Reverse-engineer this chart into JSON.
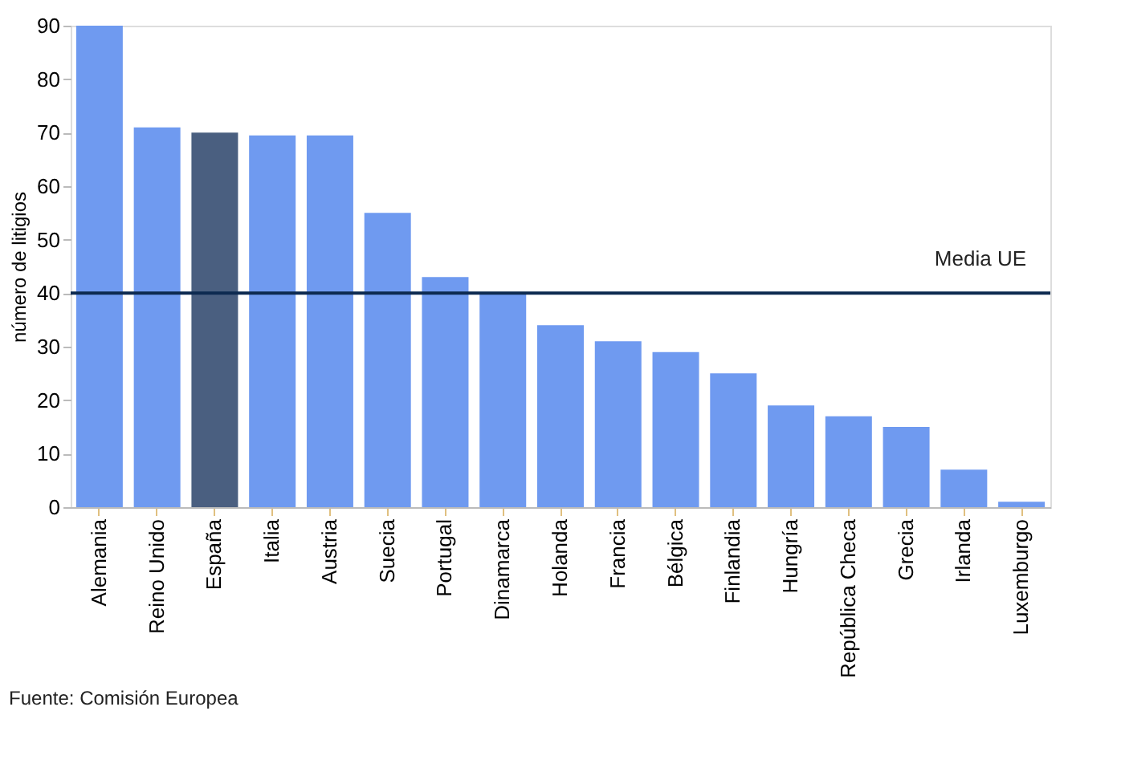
{
  "chart_data": {
    "type": "bar",
    "ylabel": "número de litigios",
    "categories": [
      "Alemania",
      "Reino Unido",
      "España",
      "Italia",
      "Austria",
      "Suecia",
      "Portugal",
      "Dinamarca",
      "Holanda",
      "Francia",
      "Bélgica",
      "Finlandia",
      "Hungría",
      "República Checa",
      "Grecia",
      "Irlanda",
      "Luxemburgo"
    ],
    "values": [
      90,
      71,
      70,
      69.5,
      69.5,
      55,
      43,
      40,
      34,
      31,
      29,
      25,
      19,
      17,
      15,
      7,
      1
    ],
    "colors": [
      "#6f9af0",
      "#6f9af0",
      "#4a5f80",
      "#6f9af0",
      "#6f9af0",
      "#6f9af0",
      "#6f9af0",
      "#6f9af0",
      "#6f9af0",
      "#6f9af0",
      "#6f9af0",
      "#6f9af0",
      "#6f9af0",
      "#6f9af0",
      "#6f9af0",
      "#6f9af0",
      "#6f9af0"
    ],
    "ylim": [
      0,
      90
    ],
    "yticks": [
      0,
      10,
      20,
      30,
      40,
      50,
      60,
      70,
      80,
      90
    ],
    "grid": false,
    "ref_lines": [
      {
        "axis": "y",
        "value": 40,
        "label": "Media UE",
        "color": "#0d2a50"
      }
    ],
    "annotations": [
      "Fuente: Comisión Europea"
    ]
  }
}
